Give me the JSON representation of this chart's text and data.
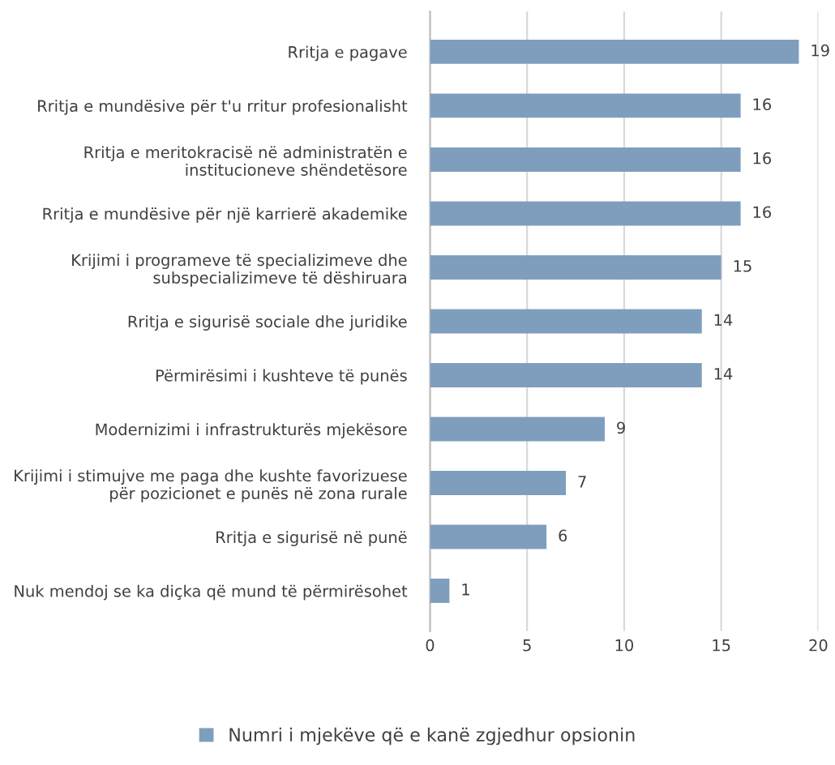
{
  "chart_data": {
    "type": "bar",
    "orientation": "horizontal",
    "categories": [
      "Rritja e pagave",
      "Rritja e mundësive për t'u rritur profesionalisht",
      "Rritja e meritokracisë në administratën e\ninstitucioneve shëndetësore",
      "Rritja e mundësive për një karrierë akademike",
      "Krijimi i programeve të specializimeve dhe\nsubspecializimeve të dëshiruara",
      "Rritja e sigurisë sociale dhe juridike",
      "Përmirësimi i kushteve të punës",
      "Modernizimi i infrastrukturës mjekësore",
      "Krijimi i stimujve me paga dhe kushte favorizuese\npër pozicionet e punës në zona rurale",
      "Rritja e sigurisë në punë",
      "Nuk mendoj se ka diçka që mund të përmirësohet"
    ],
    "series": [
      {
        "name": "Numri i mjekëve që e kanë zgjedhur opsionin",
        "color": "#7f9ebe",
        "values": [
          19,
          16,
          16,
          16,
          15,
          14,
          14,
          9,
          7,
          6,
          1
        ]
      }
    ],
    "xlim": [
      0,
      20
    ],
    "xticks": [
      0,
      5,
      10,
      15,
      20
    ],
    "grid": "x",
    "legend": "bottom",
    "data_labels": true
  }
}
